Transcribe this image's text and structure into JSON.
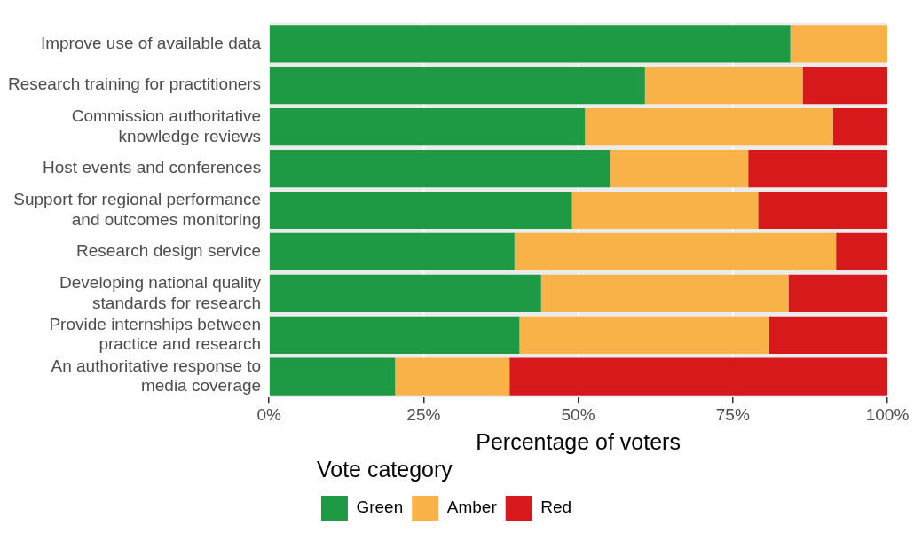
{
  "chart_data": {
    "type": "bar",
    "orientation": "horizontal",
    "stacked": true,
    "xlabel": "Percentage of voters",
    "legend_title": "Vote category",
    "legend": "bottom",
    "grid": "x",
    "categories": [
      "Improve use of available data",
      "Research training for practitioners",
      "Commission authoritative\nknowledge reviews",
      "Host events and conferences",
      "Support for regional performance\nand outcomes monitoring",
      "Research design service",
      "Developing national quality\nstandards for research",
      "Provide internships between\npractice and research",
      "An authoritative response to\nmedia coverage"
    ],
    "xlim": [
      0,
      100
    ],
    "xticks": [
      {
        "value": 0,
        "label": "0%"
      },
      {
        "value": 25,
        "label": "25%"
      },
      {
        "value": 50,
        "label": "50%"
      },
      {
        "value": 75,
        "label": "75%"
      },
      {
        "value": 100,
        "label": "100%"
      }
    ],
    "series": [
      {
        "name": "Green",
        "color": "#1e9a44",
        "values": [
          84.3,
          60.8,
          51.1,
          55.1,
          49.0,
          39.7,
          44.0,
          40.5,
          20.4
        ]
      },
      {
        "name": "Amber",
        "color": "#f9b248",
        "values": [
          15.7,
          25.5,
          40.1,
          22.4,
          30.1,
          52.0,
          40.0,
          40.4,
          18.5
        ]
      },
      {
        "name": "Red",
        "color": "#d7191c",
        "values": [
          0,
          13.7,
          8.8,
          22.5,
          20.9,
          8.3,
          16.0,
          19.1,
          61.1
        ]
      }
    ]
  }
}
